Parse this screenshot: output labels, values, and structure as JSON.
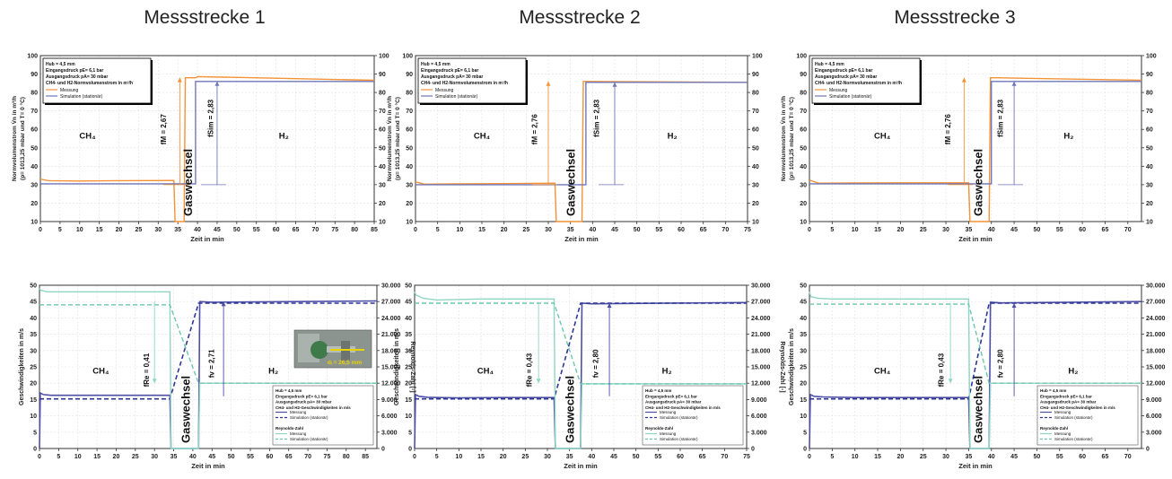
{
  "column_titles": [
    "Messstrecke 1",
    "Messstrecke 2",
    "Messstrecke 3"
  ],
  "colors": {
    "messung_flow": "#f39237",
    "simulation_flow": "#6f77b8",
    "velocity_measured": "#4d4fa6",
    "velocity_sim": "#2f3796",
    "reynolds_measured": "#8fd6c3",
    "reynolds_sim": "#6cc6ae",
    "grid": "#e2e2e2"
  },
  "chart_data": [
    {
      "id": "flow-1",
      "type": "line",
      "xlabel": "Zeit in min",
      "ylabel_lines": [
        "Normvolumenstrom V̇n in m³/h",
        "(p= 1013,25 mbar und T= 0 °C)"
      ],
      "xlim": [
        0,
        85
      ],
      "xticks": [
        0,
        5,
        10,
        15,
        20,
        25,
        30,
        35,
        40,
        45,
        50,
        55,
        60,
        65,
        70,
        75,
        80,
        85
      ],
      "ylim": [
        10,
        100
      ],
      "yticks": [
        10,
        20,
        30,
        40,
        50,
        60,
        70,
        80,
        90,
        100
      ],
      "y2ticks": [
        10,
        20,
        30,
        40,
        50,
        60,
        70,
        80,
        90,
        100
      ],
      "legend": [
        "Hub = 4,5 mm",
        "Eingangsdruck pE= 6,1 bar",
        "Ausgangsdruck pA= 30 mbar",
        "CH4- und H2-Normvolumenstrom in m³/h"
      ],
      "legend_series": [
        "Messung",
        "Simulation (stationär)"
      ],
      "series": [
        {
          "name": "Messung",
          "x": [
            0,
            2,
            10,
            20,
            34,
            34.3,
            36.6,
            36.9,
            39.5,
            40,
            85
          ],
          "y": [
            33,
            32.2,
            32,
            32.2,
            32.3,
            10,
            10,
            88,
            88,
            88.6,
            86.6
          ]
        },
        {
          "name": "Simulation (stationär)",
          "x": [
            0,
            34,
            34,
            39.5,
            39.5,
            85
          ],
          "y": [
            30.5,
            30.5,
            30.5,
            30.5,
            86,
            86
          ]
        }
      ],
      "gas_labels": {
        "left": "CH₄",
        "left_x": 12,
        "left_y": 55,
        "right": "H₂",
        "right_x": 62,
        "right_y": 55
      },
      "switch_label": "Gaswechsel",
      "switch_x": 37.5,
      "annotations": [
        {
          "text": "fM = 2,67",
          "x": 32,
          "y": 60
        },
        {
          "text": "fSim = 2,83",
          "x": 44,
          "y": 66
        }
      ],
      "ratio_arrows": [
        {
          "x": 35.5,
          "y_from": 30,
          "y_to": 88,
          "color": "messung_flow"
        },
        {
          "x": 45,
          "y_from": 30,
          "y_to": 86,
          "color": "simulation_flow"
        }
      ]
    },
    {
      "id": "flow-2",
      "type": "line",
      "xlabel": "Zeit in min",
      "ylabel_lines": [
        "Normvolumenstrom V̇n in m³/h",
        "(p= 1013,25 mbar und T= 0 °C)"
      ],
      "xlim": [
        0,
        75
      ],
      "xticks": [
        0,
        5,
        10,
        15,
        20,
        25,
        30,
        35,
        40,
        45,
        50,
        55,
        60,
        65,
        70,
        75
      ],
      "ylim": [
        10,
        100
      ],
      "yticks": [
        10,
        20,
        30,
        40,
        50,
        60,
        70,
        80,
        90,
        100
      ],
      "y2ticks": [
        10,
        20,
        30,
        40,
        50,
        60,
        70,
        80,
        90,
        100
      ],
      "legend": [
        "Hub = 4,5 mm",
        "Eingangsdruck pE= 6,1 bar",
        "Ausgangsdruck pA= 30 mbar",
        "CH4- und H2-Normvolumenstrom in m³/h"
      ],
      "legend_series": [
        "Messung",
        "Simulation (stationär)"
      ],
      "series": [
        {
          "name": "Messung",
          "x": [
            0,
            2,
            10,
            20,
            31.5,
            31.8,
            37.6,
            37.9,
            39,
            75
          ],
          "y": [
            31.5,
            30.3,
            30.5,
            30.6,
            30.8,
            10,
            10,
            86,
            86,
            85.5
          ]
        },
        {
          "name": "Simulation (stationär)",
          "x": [
            0,
            31.5,
            31.5,
            38.5,
            38.5,
            75
          ],
          "y": [
            30,
            30,
            30,
            30,
            85.5,
            85.5
          ]
        }
      ],
      "gas_labels": {
        "left": "CH₄",
        "left_x": 15,
        "left_y": 55,
        "right": "H₂",
        "right_x": 58,
        "right_y": 55
      },
      "switch_label": "Gaswechsel",
      "switch_x": 35,
      "annotations": [
        {
          "text": "fM = 2,76",
          "x": 27.5,
          "y": 60
        },
        {
          "text": "fSim = 2,83",
          "x": 41.5,
          "y": 66
        }
      ],
      "ratio_arrows": [
        {
          "x": 30,
          "y_from": 30,
          "y_to": 86,
          "color": "messung_flow"
        },
        {
          "x": 45,
          "y_from": 30,
          "y_to": 85.5,
          "color": "simulation_flow"
        }
      ]
    },
    {
      "id": "flow-3",
      "type": "line",
      "xlabel": "Zeit in min",
      "ylabel_lines": [
        "Normvolumenstrom V̇n in m³/h",
        "(p= 1013,25 mbar und T= 0 °C)"
      ],
      "xlim": [
        0,
        73
      ],
      "xticks": [
        0,
        5,
        10,
        15,
        20,
        25,
        30,
        35,
        40,
        45,
        50,
        55,
        60,
        65,
        70
      ],
      "ylim": [
        10,
        100
      ],
      "yticks": [
        10,
        20,
        30,
        40,
        50,
        60,
        70,
        80,
        90,
        100
      ],
      "y2ticks": [
        10,
        20,
        30,
        40,
        50,
        60,
        70,
        80,
        90,
        100
      ],
      "legend": [
        "Hub = 4,5 mm",
        "Eingangsdruck pE= 6,1 bar",
        "Ausgangsdruck pA= 30 mbar",
        "CH4- und H2-Normvolumenstrom in m³/h"
      ],
      "legend_series": [
        "Messung",
        "Simulation (stationär)"
      ],
      "series": [
        {
          "name": "Messung",
          "x": [
            0,
            2,
            10,
            20,
            35,
            35.3,
            39.5,
            39.8,
            41,
            73
          ],
          "y": [
            32.5,
            30.8,
            30.9,
            31,
            31,
            10,
            10,
            88,
            88,
            86.6
          ]
        },
        {
          "name": "Simulation (stationär)",
          "x": [
            0,
            35,
            35,
            40,
            40,
            73
          ],
          "y": [
            30.5,
            30.5,
            30.5,
            30.5,
            86,
            86
          ]
        }
      ],
      "gas_labels": {
        "left": "CH₄",
        "left_x": 16,
        "left_y": 55,
        "right": "H₂",
        "right_x": 57,
        "right_y": 55
      },
      "switch_label": "Gaswechsel",
      "switch_x": 37,
      "annotations": [
        {
          "text": "fM = 2,76",
          "x": 31,
          "y": 60
        },
        {
          "text": "fSim = 2,83",
          "x": 42.5,
          "y": 66
        }
      ],
      "ratio_arrows": [
        {
          "x": 34,
          "y_from": 30,
          "y_to": 88,
          "color": "messung_flow"
        },
        {
          "x": 45,
          "y_from": 30,
          "y_to": 86,
          "color": "simulation_flow"
        }
      ]
    },
    {
      "id": "velocity-1",
      "type": "line",
      "xlabel": "Zeit in min",
      "ylabel": "Geschwindigkeiten in m/s",
      "y2label": "Reynolds-Zahl [-]",
      "xlim": [
        0,
        88
      ],
      "xticks": [
        0,
        5,
        10,
        15,
        20,
        25,
        30,
        35,
        40,
        45,
        50,
        55,
        60,
        65,
        70,
        75,
        80,
        85
      ],
      "ylim": [
        0,
        50
      ],
      "yticks": [
        0,
        5,
        10,
        15,
        20,
        25,
        30,
        35,
        40,
        45,
        50
      ],
      "y2lim": [
        0,
        30000
      ],
      "y2ticks": [
        "0",
        "3.000",
        "6.000",
        "9.000",
        "12.000",
        "15.000",
        "18.000",
        "21.000",
        "24.000",
        "27.000",
        "30.000"
      ],
      "legend": [
        "Hub = 4,5 mm",
        "Eingangsdruck pE= 6,1 bar",
        "Ausgangsdruck pA= 30 mbar",
        "CH4- und H2-Geschwindigkeiten in m/s"
      ],
      "legend_series": [
        "Messung",
        "Simulation (stationär)"
      ],
      "legend2_title": "Reynolds-Zahl",
      "legend2_series": [
        "Messung",
        "Simulation (stationär)"
      ],
      "series": [
        {
          "name": "Geschwindigkeit Messung",
          "x": [
            0,
            0.2,
            1,
            3,
            10,
            20,
            34,
            34.3,
            41.5,
            41.8,
            45,
            88
          ],
          "y": [
            0,
            17,
            16.5,
            16.3,
            16.3,
            16.3,
            16.3,
            0,
            0,
            45,
            44.8,
            45.2
          ]
        },
        {
          "name": "Geschwindigkeit Simulation",
          "x": [
            0,
            34,
            41.5,
            88
          ],
          "y": [
            15.2,
            15.2,
            44.5,
            44.5
          ]
        },
        {
          "name": "Reynolds Messung",
          "x": [
            0,
            0.3,
            2,
            5,
            15,
            34,
            34.3,
            41.5,
            41.8,
            88
          ],
          "y": [
            49,
            48.5,
            48,
            48,
            48,
            48,
            0,
            0,
            20,
            20
          ]
        },
        {
          "name": "Reynolds Simulation",
          "x": [
            0,
            34,
            41.5,
            88
          ],
          "y": [
            44,
            44,
            20,
            20
          ]
        }
      ],
      "gas_labels": {
        "left": "CH₄",
        "left_x": 16,
        "left_y": 23,
        "right": "H₂",
        "right_x": 61,
        "right_y": 23
      },
      "switch_label": "Gaswechsel",
      "switch_x": 38,
      "annotations": [
        {
          "text": "fRe = 0,41",
          "x": 28.5,
          "y": 24
        },
        {
          "text": "fv = 2,71",
          "x": 45.5,
          "y": 26
        }
      ],
      "ratio_arrows": [
        {
          "x": 30,
          "y_from": 45,
          "y_to": 20,
          "color": "reynolds_measured"
        },
        {
          "x": 48,
          "y_from": 16,
          "y_to": 45,
          "color": "velocity_measured"
        }
      ],
      "inset_label": "dᵢ = 26,5 mm"
    },
    {
      "id": "velocity-2",
      "type": "line",
      "xlabel": "Zeit in min",
      "ylabel": "Geschwindigkeiten in m/s",
      "y2label": "Reynolds-Zahl [-]",
      "xlim": [
        0,
        75
      ],
      "xticks": [
        0,
        5,
        10,
        15,
        20,
        25,
        30,
        35,
        40,
        45,
        50,
        55,
        60,
        65,
        70,
        75
      ],
      "ylim": [
        0,
        50
      ],
      "yticks": [
        0,
        5,
        10,
        15,
        20,
        25,
        30,
        35,
        40,
        45,
        50
      ],
      "y2lim": [
        0,
        30000
      ],
      "y2ticks": [
        "0",
        "3.000",
        "6.000",
        "9.000",
        "12.000",
        "15.000",
        "18.000",
        "21.000",
        "24.000",
        "27.000",
        "30.000"
      ],
      "legend": [
        "Hub = 4,5 mm",
        "Eingangsdruck pE= 6,1 bar",
        "Ausgangsdruck pA= 30 mbar",
        "CH4- und H2-Geschwindigkeiten in m/s"
      ],
      "legend_series": [
        "Messung",
        "Simulation (stationär)"
      ],
      "legend2_title": "Reynolds-Zahl",
      "legend2_series": [
        "Messung",
        "Simulation (stationär)"
      ],
      "series": [
        {
          "name": "Geschwindigkeit Messung",
          "x": [
            0,
            0.2,
            1,
            3,
            10,
            20,
            31.5,
            31.8,
            37.5,
            37.8,
            40,
            75
          ],
          "y": [
            0,
            16.5,
            16,
            15.7,
            15.5,
            15.6,
            15.6,
            0,
            0,
            44.5,
            44.3,
            44.7
          ]
        },
        {
          "name": "Geschwindigkeit Simulation",
          "x": [
            0,
            31.5,
            37.5,
            75
          ],
          "y": [
            15.2,
            15.2,
            44.5,
            44.5
          ]
        },
        {
          "name": "Reynolds Messung",
          "x": [
            0,
            0.3,
            2,
            5,
            15,
            31.5,
            31.8,
            37.5,
            37.8,
            75
          ],
          "y": [
            48,
            47,
            46,
            45.5,
            45.8,
            45.8,
            0,
            0,
            19.8,
            19.8
          ]
        },
        {
          "name": "Reynolds Simulation",
          "x": [
            0,
            31.5,
            37.5,
            75
          ],
          "y": [
            44.5,
            44.5,
            19.8,
            19.8
          ]
        }
      ],
      "gas_labels": {
        "left": "CH₄",
        "left_x": 16,
        "left_y": 23,
        "right": "H₂",
        "right_x": 57,
        "right_y": 23
      },
      "switch_label": "Gaswechsel",
      "switch_x": 35,
      "annotations": [
        {
          "text": "fRe = 0,43",
          "x": 26.5,
          "y": 24
        },
        {
          "text": "fv = 2,80",
          "x": 41.5,
          "y": 26
        }
      ],
      "ratio_arrows": [
        {
          "x": 28,
          "y_from": 44.5,
          "y_to": 20,
          "color": "reynolds_measured"
        },
        {
          "x": 44,
          "y_from": 16,
          "y_to": 44.5,
          "color": "velocity_measured"
        }
      ]
    },
    {
      "id": "velocity-3",
      "type": "line",
      "xlabel": "Zeit in min",
      "ylabel": "Geschwindigkeiten in m/s",
      "y2label": "Reynolds-Zahl [-]",
      "xlim": [
        0,
        73
      ],
      "xticks": [
        0,
        5,
        10,
        15,
        20,
        25,
        30,
        35,
        40,
        45,
        50,
        55,
        60,
        65,
        70
      ],
      "ylim": [
        0,
        50
      ],
      "yticks": [
        0,
        5,
        10,
        15,
        20,
        25,
        30,
        35,
        40,
        45,
        50
      ],
      "y2lim": [
        0,
        30000
      ],
      "y2ticks": [
        "0",
        "3.000",
        "6.000",
        "9.000",
        "12.000",
        "15.000",
        "18.000",
        "21.000",
        "24.000",
        "27.000",
        "30.000"
      ],
      "legend": [
        "Hub = 4,5 mm",
        "Eingangsdruck pE= 6,1 bar",
        "Ausgangsdruck pA= 30 mbar",
        "CH4- und H2-Geschwindigkeiten in m/s"
      ],
      "legend_series": [
        "Messung",
        "Simulation (stationär)"
      ],
      "legend2_title": "Reynolds-Zahl",
      "legend2_series": [
        "Messung",
        "Simulation (stationär)"
      ],
      "series": [
        {
          "name": "Geschwindigkeit Messung",
          "x": [
            0,
            0.2,
            1,
            3,
            10,
            20,
            35,
            35.3,
            39.5,
            39.8,
            42,
            73
          ],
          "y": [
            0,
            16.5,
            16,
            15.8,
            15.6,
            15.6,
            15.6,
            0,
            0,
            44.8,
            44.6,
            45
          ]
        },
        {
          "name": "Geschwindigkeit Simulation",
          "x": [
            0,
            35,
            39.5,
            73
          ],
          "y": [
            15.2,
            15.2,
            44.5,
            44.5
          ]
        },
        {
          "name": "Reynolds Messung",
          "x": [
            0,
            0.3,
            2,
            5,
            15,
            35,
            35.3,
            39.5,
            39.8,
            73
          ],
          "y": [
            48,
            46.5,
            46,
            45.8,
            45.8,
            45.8,
            0,
            0,
            20,
            20
          ]
        },
        {
          "name": "Reynolds Simulation",
          "x": [
            0,
            35,
            39.5,
            73
          ],
          "y": [
            44.2,
            44.2,
            20,
            20
          ]
        }
      ],
      "gas_labels": {
        "left": "CH₄",
        "left_x": 16,
        "left_y": 23,
        "right": "H₂",
        "right_x": 58,
        "right_y": 23
      },
      "switch_label": "Gaswechsel",
      "switch_x": 37,
      "annotations": [
        {
          "text": "fRe = 0,43",
          "x": 29.5,
          "y": 24
        },
        {
          "text": "fv = 2,80",
          "x": 42.5,
          "y": 26
        }
      ],
      "ratio_arrows": [
        {
          "x": 31,
          "y_from": 44.5,
          "y_to": 20,
          "color": "reynolds_measured"
        },
        {
          "x": 45,
          "y_from": 16,
          "y_to": 44.5,
          "color": "velocity_measured"
        }
      ]
    }
  ]
}
